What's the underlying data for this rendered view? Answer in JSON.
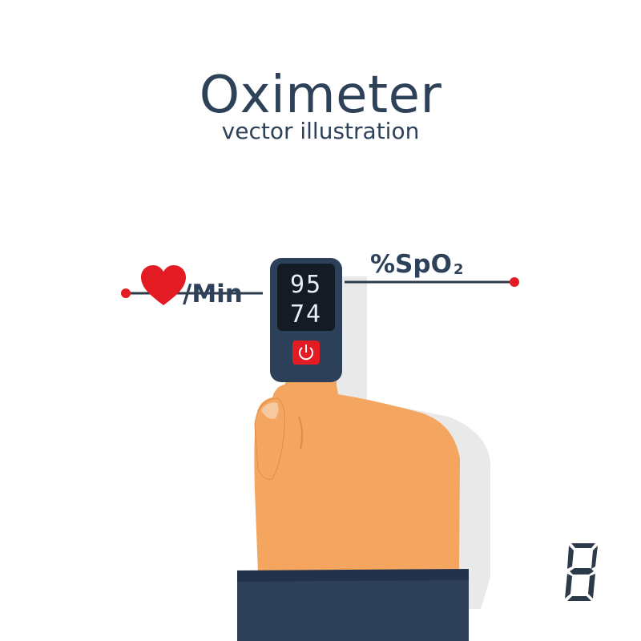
{
  "header": {
    "title": "Oximeter",
    "subtitle": "vector illustration"
  },
  "labels": {
    "pulse_unit": "/Min",
    "spo2_prefix": "%SpO",
    "spo2_subscript": "2"
  },
  "device": {
    "spo2_reading": "95",
    "pulse_reading": "74"
  },
  "icons": {
    "heart": "heart-icon",
    "power": "power-icon",
    "digit": "seven-segment-eight-icon"
  },
  "colors": {
    "text": "#2d4159",
    "accent": "#e31b23",
    "skin": "#f4a55f",
    "device": "#2d4059",
    "screen": "#141b24",
    "sleeve": "#2e3f58",
    "shadow": "#e9e9e9",
    "line": "#2d3a4a"
  }
}
